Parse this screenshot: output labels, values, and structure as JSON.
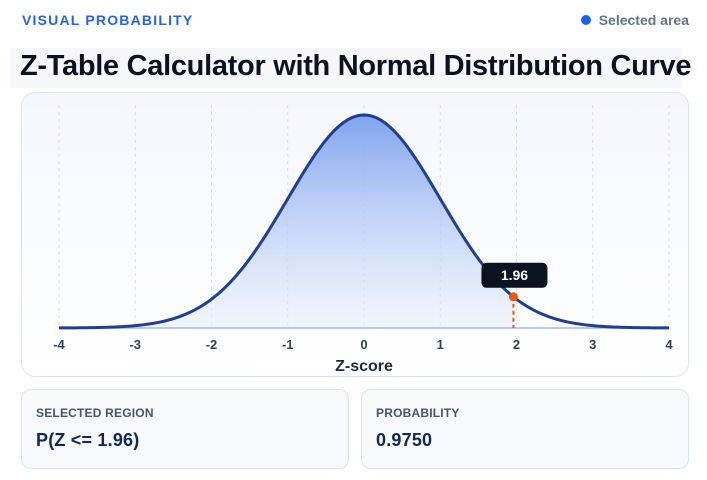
{
  "header": {
    "eyebrow": "VISUAL PROBABILITY",
    "legend_label": "Selected area",
    "title": "Z-Table Calculator with Normal Distribution Curve"
  },
  "colors": {
    "accent": "#2563eb",
    "curve": "#1f3f94",
    "marker": "#ea580c",
    "fill_top": "#7aa0ee",
    "fill_bottom": "#e6edfb"
  },
  "chart_data": {
    "type": "area",
    "curve": "standard normal density",
    "xlabel": "Z-score",
    "ylabel": "",
    "xlim": [
      -4,
      4
    ],
    "x_ticks": [
      -4,
      -3,
      -2,
      -1,
      0,
      1,
      2,
      3,
      4
    ],
    "grid": true,
    "shaded_region": {
      "from": -4,
      "to": 1.96
    },
    "marker": {
      "z": 1.96,
      "label": "1.96"
    }
  },
  "results": {
    "region_label": "SELECTED REGION",
    "region_value": "P(Z <= 1.96)",
    "probability_label": "PROBABILITY",
    "probability_value": "0.9750"
  }
}
